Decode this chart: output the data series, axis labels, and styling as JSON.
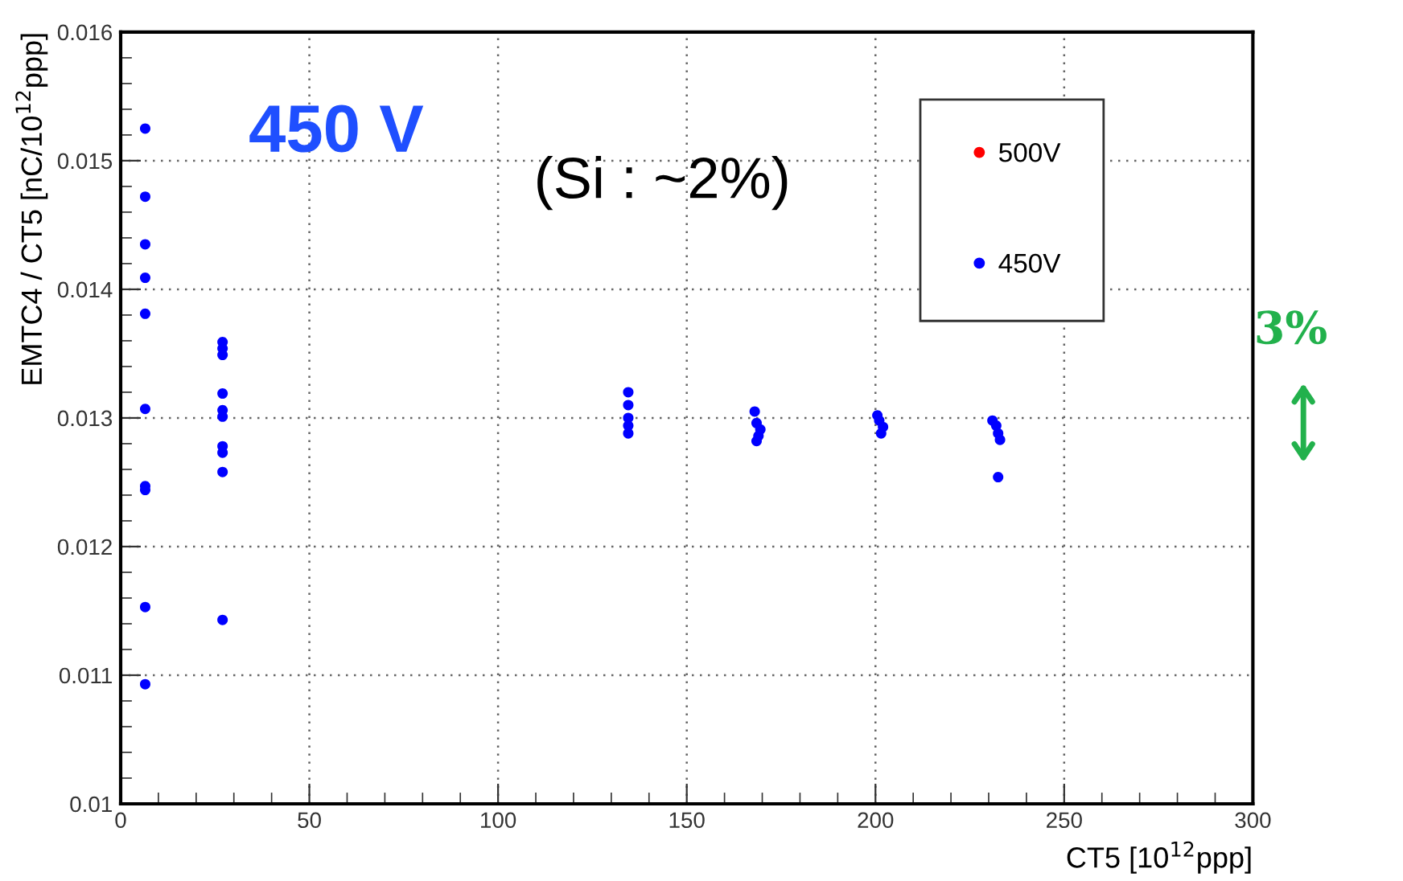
{
  "chart_data": {
    "type": "scatter",
    "xlabel": "CT5 [10$^{12}$ppp]",
    "ylabel": "EMTC4 / CT5 [nC/10$^{12}$ppp]",
    "xlim": [
      0,
      300
    ],
    "xticks": [
      0,
      50,
      100,
      150,
      200,
      250,
      300
    ],
    "ylim": [
      0.01,
      0.016
    ],
    "yticks": [
      0.01,
      0.011,
      0.012,
      0.013,
      0.014,
      0.015,
      0.016
    ],
    "grid": true,
    "legend": "top right",
    "marker": "circle",
    "annotations": [
      "450 V",
      "(Si : ~2%)",
      "3%"
    ],
    "series": [
      {
        "name": "500V",
        "color": "#ff0000"
      },
      {
        "name": "450V",
        "color": "#0000ff",
        "x": [
          6.5,
          6.5,
          6.5,
          6.5,
          6.5,
          6.5,
          6.5,
          6.5,
          6.5,
          6.5,
          27,
          27,
          27,
          27,
          27,
          27,
          27,
          27,
          27,
          27,
          134.5,
          134.5,
          134.5,
          134.5,
          134.5,
          168,
          168.5,
          169.5,
          169,
          168.5,
          200.5,
          201,
          202,
          201.5,
          231,
          232,
          232.5,
          233,
          232.5
        ],
        "values": [
          0.01525,
          0.01472,
          0.01435,
          0.01409,
          0.01381,
          0.01307,
          0.01247,
          0.01244,
          0.01153,
          0.01093,
          0.01359,
          0.01354,
          0.01349,
          0.01319,
          0.01306,
          0.01301,
          0.01278,
          0.01273,
          0.01258,
          0.01143,
          0.0132,
          0.0131,
          0.013,
          0.01294,
          0.01288,
          0.01305,
          0.01296,
          0.01291,
          0.01286,
          0.01282,
          0.01302,
          0.01298,
          0.01293,
          0.01288,
          0.01298,
          0.01294,
          0.01288,
          0.01283,
          0.01254
        ]
      }
    ]
  }
}
